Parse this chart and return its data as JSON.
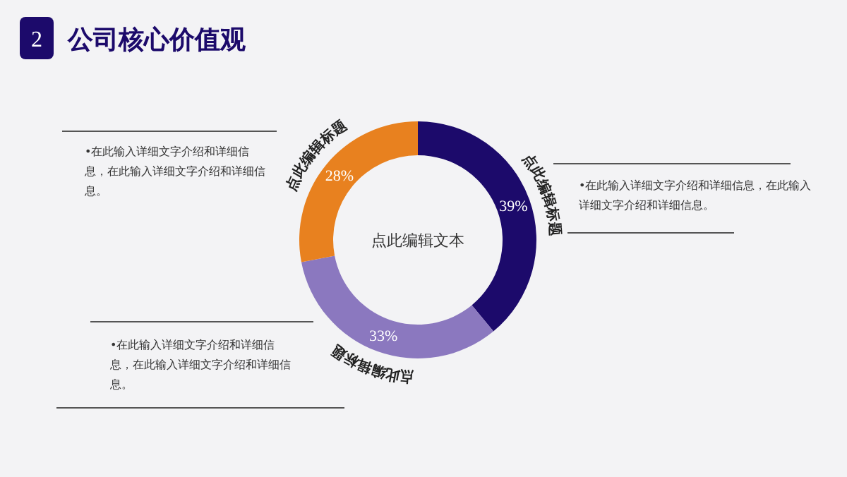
{
  "chart_data": {
    "type": "donut",
    "title": "公司核心价值观",
    "categories": [
      "点此编辑标题",
      "点此编辑标题",
      "点此编辑标题"
    ],
    "values": [
      39,
      33,
      28
    ],
    "colors": [
      "#1c0a6b",
      "#8b78bf",
      "#e8811f"
    ],
    "value_labels": [
      "39%",
      "33%",
      "28%"
    ],
    "annotations": [
      "2",
      "点此编辑文本",
      "•在此输入详细文字介绍和详细信息，在此输入详细文字介绍和详细信息。",
      "•在此输入详细文字介绍和详细信息，在此输入详细文字介绍和详细信息。",
      "•在此输入详细文字介绍和详细信息，在此输入详细文字介绍和详细信息。"
    ]
  }
}
